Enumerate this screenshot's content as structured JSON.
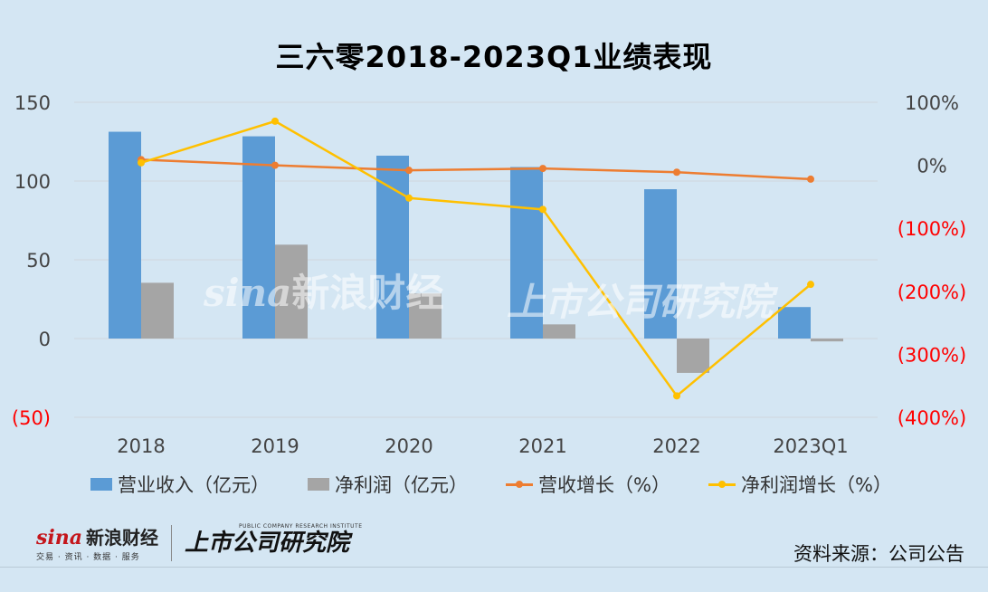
{
  "title": "三六零2018-2023Q1业绩表现",
  "colors": {
    "revenue": "#5b9bd5",
    "profit": "#a5a5a5",
    "revenue_growth": "#ed7d31",
    "profit_growth": "#ffc000",
    "right_axis_negative": "#ff0000",
    "grid": "#d0d7de"
  },
  "chart_data": {
    "type": "bar",
    "categories": [
      "2018",
      "2019",
      "2020",
      "2021",
      "2022",
      "2023Q1"
    ],
    "left_axis": {
      "ylim": [
        -50,
        150
      ],
      "ticks": [
        150,
        100,
        50,
        0,
        -50
      ],
      "tick_labels": [
        "150",
        "100",
        "50",
        "0",
        "(50)"
      ]
    },
    "right_axis": {
      "ylim": [
        -400,
        100
      ],
      "ticks": [
        100,
        0,
        -100,
        -200,
        -300,
        -400
      ],
      "tick_labels": [
        "100%",
        "0%",
        "(100%)",
        "(200%)",
        "(300%)",
        "(400%)"
      ]
    },
    "series": [
      {
        "name": "营业收入（亿元）",
        "type": "bar",
        "axis": "left",
        "values": [
          131.3,
          128.4,
          116.1,
          108.9,
          94.8,
          20.0
        ]
      },
      {
        "name": "净利润（亿元）",
        "type": "bar",
        "axis": "left",
        "values": [
          35.4,
          59.6,
          28.6,
          9.0,
          -21.8,
          -1.8
        ]
      },
      {
        "name": "营收增长（%）",
        "type": "line",
        "axis": "right",
        "values": [
          9,
          0,
          -8,
          -5,
          -11,
          -22
        ]
      },
      {
        "name": "净利润增长（%）",
        "type": "line",
        "axis": "right",
        "values": [
          4,
          70,
          -52,
          -70,
          -366,
          -189
        ]
      }
    ],
    "grid": true,
    "legend_position": "bottom"
  },
  "footer": {
    "sina_word": "sina",
    "sina_cn": "新浪财经",
    "sina_tagline": "交易 · 资讯 · 数据 · 服务",
    "institute_en": "PUBLIC COMPANY RESEARCH INSTITUTE",
    "institute_cn": "上市公司研究院",
    "source": "资料来源：公司公告"
  }
}
